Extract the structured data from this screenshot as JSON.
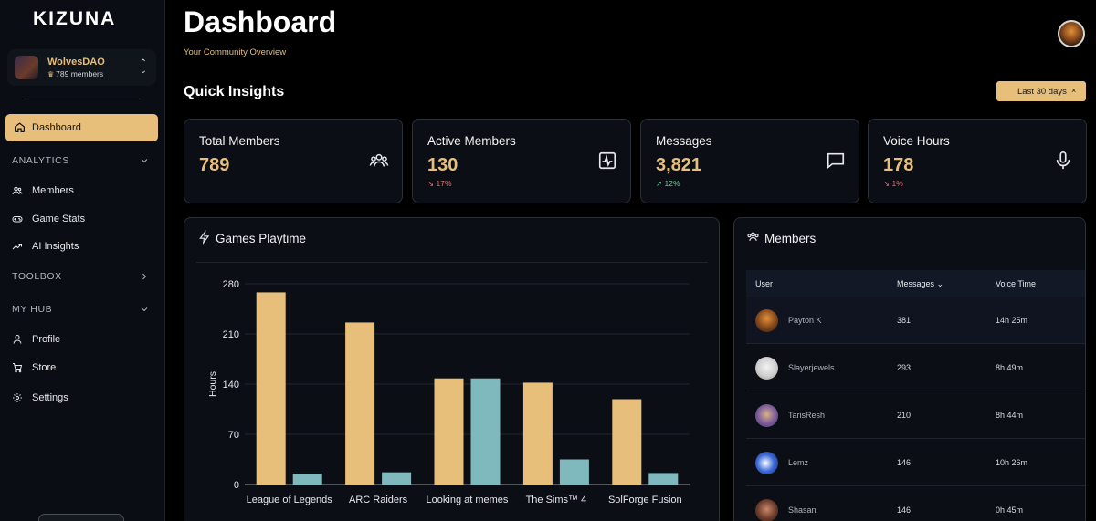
{
  "app": {
    "logo": "KIZUNA"
  },
  "server": {
    "name": "WolvesDAO",
    "members": "789 members"
  },
  "nav": {
    "dashboard": "Dashboard",
    "analytics": "ANALYTICS",
    "members": "Members",
    "game_stats": "Game Stats",
    "ai_insights": "AI Insights",
    "toolbox": "TOOLBOX",
    "my_hub": "MY HUB",
    "profile": "Profile",
    "store": "Store",
    "settings": "Settings"
  },
  "header": {
    "title": "Dashboard",
    "subtitle": "Your Community Overview"
  },
  "quick_insights": {
    "title": "Quick Insights",
    "date_filter": "Last 30 days",
    "date_filter_clear": "×",
    "cards": [
      {
        "title": "Total Members",
        "value": "789",
        "delta": "",
        "trend": "none",
        "icon": "users-icon"
      },
      {
        "title": "Active Members",
        "value": "130",
        "delta": "17%",
        "trend": "down",
        "icon": "activity-icon"
      },
      {
        "title": "Messages",
        "value": "3,821",
        "delta": "12%",
        "trend": "up",
        "icon": "message-icon"
      },
      {
        "title": "Voice Hours",
        "value": "178",
        "delta": "1%",
        "trend": "down",
        "icon": "microphone-icon"
      }
    ]
  },
  "games_panel": {
    "title": "Games Playtime"
  },
  "members_panel": {
    "title": "Members",
    "columns": {
      "user": "User",
      "messages": "Messages",
      "voice_time": "Voice Time"
    },
    "rows": [
      {
        "user": "Payton K",
        "messages": "381",
        "voice_time": "14h 25m"
      },
      {
        "user": "Slayerjewels",
        "messages": "293",
        "voice_time": "8h 49m"
      },
      {
        "user": "TarisResh",
        "messages": "210",
        "voice_time": "8h 44m"
      },
      {
        "user": "Lemz",
        "messages": "146",
        "voice_time": "10h 26m"
      },
      {
        "user": "Shasan",
        "messages": "146",
        "voice_time": "0h 45m"
      }
    ]
  },
  "colors": {
    "accent": "#e7bf7b",
    "teal": "#7fb9bd",
    "up": "#58d68d",
    "down": "#f26b6b"
  },
  "chart_data": {
    "type": "bar",
    "categories": [
      "League of Legends",
      "ARC Raiders",
      "Looking at memes",
      "The Sims™ 4",
      "SolForge Fusion"
    ],
    "series": [
      {
        "values": [
          268,
          226,
          148,
          142,
          119
        ],
        "color": "#e7bf7b"
      },
      {
        "values": [
          15,
          17,
          148,
          35,
          16
        ],
        "color": "#7fb9bd"
      }
    ],
    "ylabel": "Hours",
    "yticks": [
      0,
      70,
      140,
      210,
      280
    ],
    "ylim": [
      0,
      280
    ],
    "grid": true
  }
}
